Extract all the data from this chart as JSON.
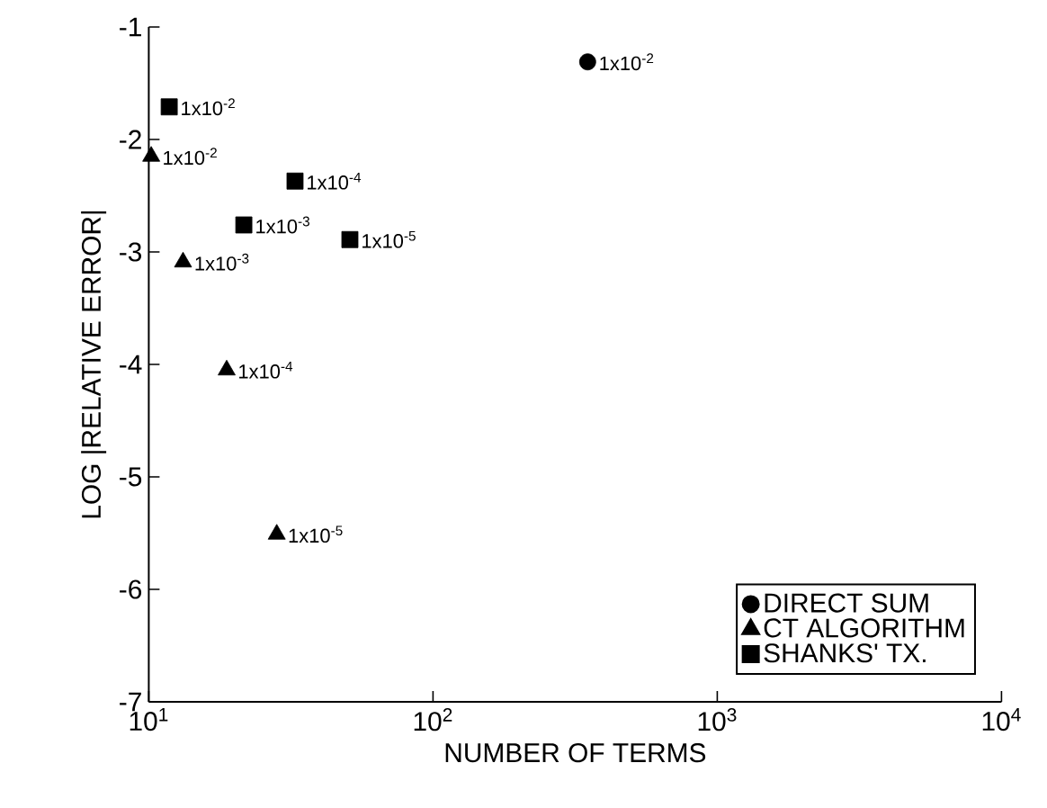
{
  "chart_data": {
    "type": "scatter",
    "xlabel": "NUMBER OF TERMS",
    "ylabel": "LOG |RELATIVE ERROR|",
    "log": "x",
    "xlim": [
      10,
      10000
    ],
    "ylim": [
      -7,
      -1
    ],
    "xticks": [
      {
        "value": 10,
        "label": "10$^{1}$"
      },
      {
        "value": 100,
        "label": "10$^{2}$"
      },
      {
        "value": 1000,
        "label": "10$^{3}$"
      },
      {
        "value": 10000,
        "label": "10$^{4}$"
      }
    ],
    "yticks": [
      -7,
      -6,
      -5,
      -4,
      -3,
      -2,
      -1
    ],
    "legend": "bottom right",
    "grid": false,
    "series": [
      {
        "name": "DIRECT SUM",
        "color": "#000000",
        "marker": "circle",
        "x": [
          350
        ],
        "values": [
          -1.31
        ]
      },
      {
        "name": "CT ALGORITHM",
        "color": "#000000",
        "marker": "triangle",
        "x": [
          10.2,
          13.2,
          18.8,
          28.2
        ],
        "values": [
          -2.15,
          -3.09,
          -4.05,
          -5.51
        ]
      },
      {
        "name": "SHANKS' TX.",
        "color": "#000000",
        "marker": "square",
        "x": [
          11.8,
          21.6,
          32.7,
          51
        ],
        "values": [
          -1.71,
          -2.76,
          -2.37,
          -2.89
        ]
      }
    ],
    "annotations": [
      {
        "text": "1x10$^{-2}$",
        "x": 350,
        "y": -1.31
      },
      {
        "text": "1x10$^{-2}$",
        "x": 10.2,
        "y": -2.15
      },
      {
        "text": "1x10$^{-3}$",
        "x": 13.2,
        "y": -3.09
      },
      {
        "text": "1x10$^{-4}$",
        "x": 18.8,
        "y": -4.05
      },
      {
        "text": "1x10$^{-5}$",
        "x": 28.2,
        "y": -5.51
      },
      {
        "text": "1x10$^{-2}$",
        "x": 11.8,
        "y": -1.71
      },
      {
        "text": "1x10$^{-3}$",
        "x": 21.6,
        "y": -2.76
      },
      {
        "text": "1x10$^{-4}$",
        "x": 32.7,
        "y": -2.37
      },
      {
        "text": "1x10$^{-5}$",
        "x": 51,
        "y": -2.89
      }
    ]
  }
}
